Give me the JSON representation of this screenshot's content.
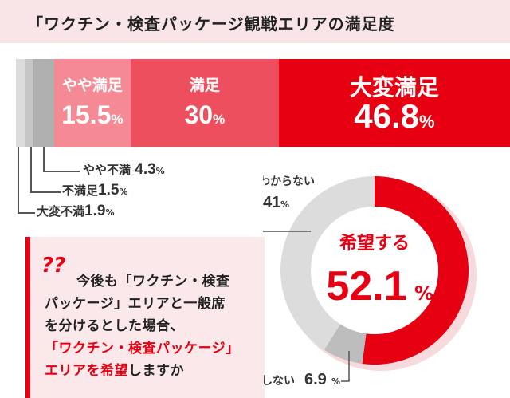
{
  "title": "「ワクチン・検査パッケージ観戦エリアの満足度",
  "chart_data": [
    {
      "type": "bar",
      "orientation": "horizontal-stacked",
      "title": "「ワクチン・検査パッケージ観戦エリアの満足度",
      "categories": [
        "大変不満",
        "不満足",
        "やや不満",
        "やや満足",
        "満足",
        "大変満足"
      ],
      "values": [
        1.9,
        1.5,
        4.3,
        15.5,
        30,
        46.8
      ],
      "unit": "%",
      "colors": [
        "#dcdcdc",
        "#c6c6c6",
        "#b0b0b0",
        "#f58a94",
        "#ee4f5e",
        "#e60012"
      ]
    },
    {
      "type": "pie",
      "style": "donut",
      "categories": [
        "希望する",
        "希望しない",
        "わからない"
      ],
      "values": [
        52.1,
        6.9,
        41
      ],
      "unit": "%",
      "colors": [
        "#e60012",
        "#bdbdbd",
        "#dcdcdc"
      ]
    }
  ],
  "labels": {
    "bar": [
      {
        "name": "大変満足",
        "value": "46.8",
        "pct": "%"
      },
      {
        "name": "満足",
        "value": "30",
        "pct": "%"
      },
      {
        "name": "やや満足",
        "value": "15.5",
        "pct": "%"
      },
      {
        "name": "やや不満",
        "value": "4.3",
        "pct": "%"
      },
      {
        "name": "不満足",
        "value": "1.5",
        "pct": "%"
      },
      {
        "name": "大変不満",
        "value": "1.9",
        "pct": "%"
      }
    ],
    "donut": {
      "hope_name": "希望する",
      "hope_value": "52.1",
      "hope_pct": "%",
      "nohope_name": "希望しない",
      "nohope_value": "6.9",
      "nohope_pct": "%",
      "unknown_name": "わからない",
      "unknown_value": "41",
      "unknown_pct": "%"
    }
  },
  "question": {
    "icon": "question-marks-icon",
    "qmark": "??",
    "line1": "今後も「ワクチン・検査",
    "line2": "パッケージ」エリアと一般席",
    "line3": "を分けるとした場合、",
    "line4": "「ワクチン・検査パッケージ」",
    "line5a": "エリアを希望",
    "line5b": "しますか"
  }
}
